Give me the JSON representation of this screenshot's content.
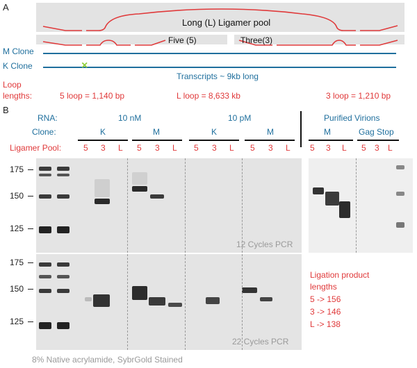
{
  "panel_a": {
    "label": "A",
    "long_pool_label": "Long (L) Ligamer pool",
    "five_label": "Five (5)",
    "three_label": "Three(3)",
    "m_clone_label": "M Clone",
    "k_clone_label": "K Clone",
    "k_mark": "×",
    "transcripts_label": "Transcripts ~ 9kb long",
    "loop_label_line1": "Loop",
    "loop_label_line2": "lengths:",
    "loop5": "5 loop = 1,140 bp",
    "loopL": "L loop = 8,633 kb",
    "loop3": "3 loop = 1,210 bp"
  },
  "panel_b": {
    "label": "B",
    "rna_label": "RNA:",
    "clone_label": "Clone:",
    "pool_label": "Ligamer Pool:",
    "rna_10nm": "10 nM",
    "rna_10pm": "10 pM",
    "purified": "Purified Virions",
    "clones": [
      "K",
      "M",
      "K",
      "M",
      "M",
      "Gag Stop"
    ],
    "lanes": [
      "5",
      "3",
      "L"
    ],
    "marker_top": [
      "175",
      "150",
      "125"
    ],
    "marker_bottom": [
      "175",
      "150",
      "125"
    ],
    "cycles_top": "12 Cycles PCR",
    "cycles_bottom": "22 Cycles PCR",
    "legend": {
      "title_line1": "Ligation product",
      "title_line2": "lengths",
      "items": [
        "5 -> 156",
        "3 -> 146",
        "L -> 138"
      ]
    },
    "footer": "8% Native acrylamide, SybrGold Stained"
  },
  "colors": {
    "accent_red": "#e0393a",
    "accent_blue": "#1f6f9d",
    "gel_bg": "#e4e4e4",
    "band": "#333333"
  }
}
